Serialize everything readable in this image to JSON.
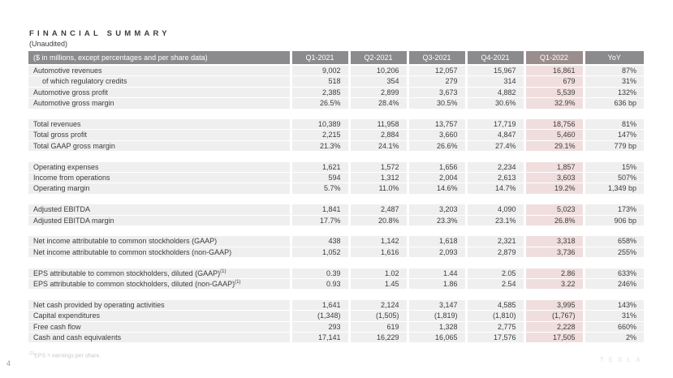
{
  "header": {
    "title": "FINANCIAL SUMMARY",
    "subtitle": "(Unaudited)"
  },
  "table": {
    "label_header": "($ in millions, except percentages and per share data)",
    "columns": [
      "Q1-2021",
      "Q2-2021",
      "Q3-2021",
      "Q4-2021",
      "Q1-2022",
      "YoY"
    ],
    "highlight_column": "Q1-2022",
    "highlight_column_index": 4,
    "groups": [
      {
        "rows": [
          {
            "label": "Automotive revenues",
            "values": [
              "9,002",
              "10,206",
              "12,057",
              "15,967",
              "16,861",
              "87%"
            ]
          },
          {
            "label": "of which regulatory credits",
            "indent": true,
            "values": [
              "518",
              "354",
              "279",
              "314",
              "679",
              "31%"
            ]
          },
          {
            "label": "Automotive gross profit",
            "values": [
              "2,385",
              "2,899",
              "3,673",
              "4,882",
              "5,539",
              "132%"
            ]
          },
          {
            "label": "Automotive gross margin",
            "values": [
              "26.5%",
              "28.4%",
              "30.5%",
              "30.6%",
              "32.9%",
              "636 bp"
            ]
          }
        ]
      },
      {
        "rows": [
          {
            "label": "Total revenues",
            "values": [
              "10,389",
              "11,958",
              "13,757",
              "17,719",
              "18,756",
              "81%"
            ]
          },
          {
            "label": "Total gross profit",
            "values": [
              "2,215",
              "2,884",
              "3,660",
              "4,847",
              "5,460",
              "147%"
            ]
          },
          {
            "label": "Total GAAP gross margin",
            "values": [
              "21.3%",
              "24.1%",
              "26.6%",
              "27.4%",
              "29.1%",
              "779 bp"
            ]
          }
        ]
      },
      {
        "rows": [
          {
            "label": "Operating expenses",
            "values": [
              "1,621",
              "1,572",
              "1,656",
              "2,234",
              "1,857",
              "15%"
            ]
          },
          {
            "label": "Income from operations",
            "values": [
              "594",
              "1,312",
              "2,004",
              "2,613",
              "3,603",
              "507%"
            ]
          },
          {
            "label": "Operating margin",
            "values": [
              "5.7%",
              "11.0%",
              "14.6%",
              "14.7%",
              "19.2%",
              "1,349 bp"
            ]
          }
        ]
      },
      {
        "rows": [
          {
            "label": "Adjusted EBITDA",
            "values": [
              "1,841",
              "2,487",
              "3,203",
              "4,090",
              "5,023",
              "173%"
            ]
          },
          {
            "label": "Adjusted EBITDA margin",
            "values": [
              "17.7%",
              "20.8%",
              "23.3%",
              "23.1%",
              "26.8%",
              "906 bp"
            ]
          }
        ]
      },
      {
        "rows": [
          {
            "label": "Net income attributable to common stockholders (GAAP)",
            "values": [
              "438",
              "1,142",
              "1,618",
              "2,321",
              "3,318",
              "658%"
            ]
          },
          {
            "label": "Net income attributable to common stockholders (non-GAAP)",
            "values": [
              "1,052",
              "1,616",
              "2,093",
              "2,879",
              "3,736",
              "255%"
            ]
          }
        ]
      },
      {
        "rows": [
          {
            "label": "EPS attributable to common stockholders, diluted (GAAP)",
            "sup": "(1)",
            "values": [
              "0.39",
              "1.02",
              "1.44",
              "2.05",
              "2.86",
              "633%"
            ]
          },
          {
            "label": "EPS attributable to common stockholders, diluted (non-GAAP)",
            "sup": "(1)",
            "values": [
              "0.93",
              "1.45",
              "1.86",
              "2.54",
              "3.22",
              "246%"
            ]
          }
        ]
      },
      {
        "rows": [
          {
            "label": "Net cash provided by operating activities",
            "values": [
              "1,641",
              "2,124",
              "3,147",
              "4,585",
              "3,995",
              "143%"
            ]
          },
          {
            "label": "Capital expenditures",
            "values": [
              "(1,348)",
              "(1,505)",
              "(1,819)",
              "(1,810)",
              "(1,767)",
              "31%"
            ]
          },
          {
            "label": "Free cash flow",
            "values": [
              "293",
              "619",
              "1,328",
              "2,775",
              "2,228",
              "660%"
            ]
          },
          {
            "label": "Cash and cash equivalents",
            "values": [
              "17,141",
              "16,229",
              "16,065",
              "17,576",
              "17,505",
              "2%"
            ]
          }
        ]
      }
    ]
  },
  "footnote": {
    "sup": "(1)",
    "text": "EPS = earnings per share."
  },
  "page": {
    "number": "4",
    "watermark": "TESLA"
  },
  "colors": {
    "header_bg": "#8b8b8e",
    "header_highlight_bg": "#9a8d8e",
    "header_text": "#ffffff",
    "row_bg": "#f0efef",
    "highlight_bg": "#f0dede",
    "text": "#3c3c3c",
    "title_text": "#3d3d3d",
    "footnote_text": "#c9c9c9",
    "page_number_text": "#9a9a9a",
    "watermark_text": "#eceaea"
  }
}
